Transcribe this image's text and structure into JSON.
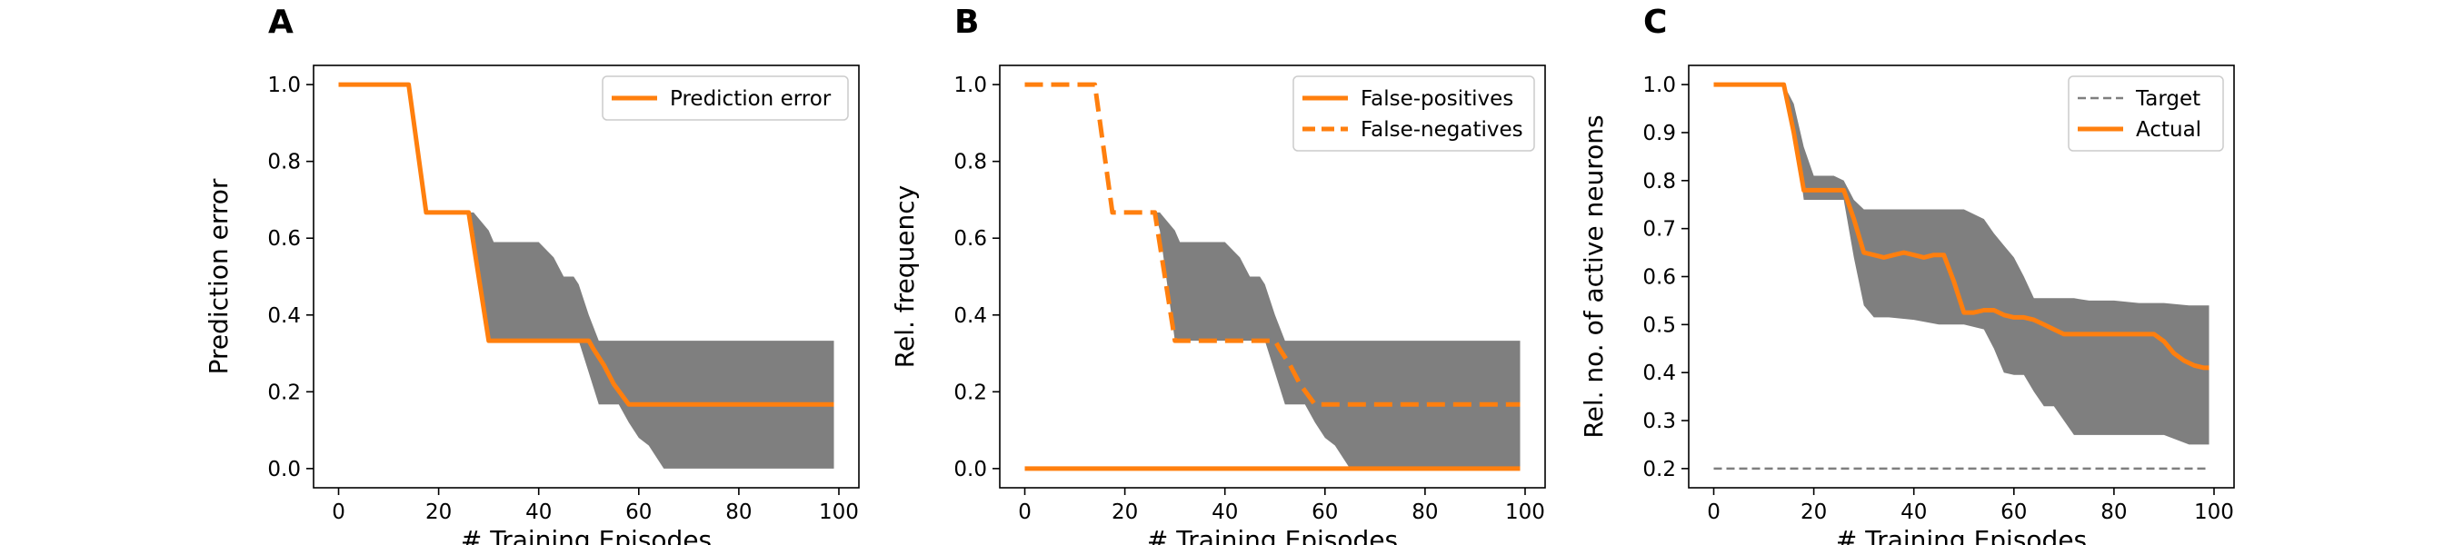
{
  "chart_data": [
    {
      "panel_label": "A",
      "type": "line",
      "title": "",
      "xlabel": "# Training Episodes",
      "ylabel": "Prediction error",
      "xlim": [
        -5,
        104
      ],
      "ylim": [
        -0.05,
        1.05
      ],
      "xticks": [
        0,
        20,
        40,
        60,
        80,
        100
      ],
      "xtick_labels": [
        "0",
        "20",
        "40",
        "60",
        "80",
        "100"
      ],
      "yticks": [
        0.0,
        0.2,
        0.4,
        0.6,
        0.8,
        1.0
      ],
      "ytick_labels": [
        "0.0",
        "0.2",
        "0.4",
        "0.6",
        "0.8",
        "1.0"
      ],
      "grid": false,
      "legend_position": "top-right",
      "band": {
        "color": "#7f7f7f",
        "x": [
          0,
          14,
          18,
          26,
          27,
          30,
          31,
          40,
          43,
          45,
          47,
          48,
          50,
          52,
          56,
          58,
          60,
          62,
          65,
          99
        ],
        "lower": [
          1.0,
          1.0,
          0.667,
          0.667,
          0.62,
          0.333,
          0.333,
          0.333,
          0.333,
          0.333,
          0.333,
          0.333,
          0.25,
          0.167,
          0.167,
          0.12,
          0.08,
          0.06,
          0.0,
          0.0
        ],
        "upper": [
          1.0,
          1.0,
          0.667,
          0.667,
          0.667,
          0.62,
          0.59,
          0.59,
          0.55,
          0.5,
          0.5,
          0.48,
          0.4,
          0.333,
          0.333,
          0.333,
          0.333,
          0.333,
          0.333,
          0.333
        ]
      },
      "series": [
        {
          "name": "Prediction error",
          "color": "#ff7f0e",
          "dash": "solid",
          "x": [
            0,
            14,
            17.5,
            26,
            30,
            50,
            51,
            53,
            55,
            58,
            99
          ],
          "y": [
            1.0,
            1.0,
            0.667,
            0.667,
            0.333,
            0.333,
            0.31,
            0.27,
            0.22,
            0.167,
            0.167
          ]
        }
      ]
    },
    {
      "panel_label": "B",
      "type": "line",
      "title": "",
      "xlabel": "# Training Episodes",
      "ylabel": "Rel. frequency",
      "xlim": [
        -5,
        104
      ],
      "ylim": [
        -0.05,
        1.05
      ],
      "xticks": [
        0,
        20,
        40,
        60,
        80,
        100
      ],
      "xtick_labels": [
        "0",
        "20",
        "40",
        "60",
        "80",
        "100"
      ],
      "yticks": [
        0.0,
        0.2,
        0.4,
        0.6,
        0.8,
        1.0
      ],
      "ytick_labels": [
        "0.0",
        "0.2",
        "0.4",
        "0.6",
        "0.8",
        "1.0"
      ],
      "grid": false,
      "legend_position": "top-right",
      "band": {
        "color": "#7f7f7f",
        "x": [
          26,
          27,
          30,
          31,
          40,
          43,
          45,
          47,
          48,
          50,
          52,
          56,
          58,
          60,
          62,
          65,
          99
        ],
        "lower": [
          0.667,
          0.62,
          0.333,
          0.333,
          0.333,
          0.333,
          0.333,
          0.333,
          0.333,
          0.25,
          0.167,
          0.167,
          0.12,
          0.08,
          0.06,
          0.0,
          0.0
        ],
        "upper": [
          0.667,
          0.667,
          0.62,
          0.59,
          0.59,
          0.55,
          0.5,
          0.5,
          0.48,
          0.4,
          0.333,
          0.333,
          0.333,
          0.333,
          0.333,
          0.333,
          0.333
        ]
      },
      "series": [
        {
          "name": "False-positives",
          "color": "#ff7f0e",
          "dash": "solid",
          "x": [
            0,
            99
          ],
          "y": [
            0.0,
            0.0
          ]
        },
        {
          "name": "False-negatives",
          "color": "#ff7f0e",
          "dash": "dashed",
          "x": [
            0,
            14,
            17.5,
            26,
            30,
            50,
            51,
            53,
            55,
            58,
            99
          ],
          "y": [
            1.0,
            1.0,
            0.667,
            0.667,
            0.333,
            0.333,
            0.31,
            0.27,
            0.22,
            0.167,
            0.167
          ]
        }
      ]
    },
    {
      "panel_label": "C",
      "type": "line",
      "title": "",
      "xlabel": "# Training Episodes",
      "ylabel": "Rel. no. of active neurons",
      "xlim": [
        -5,
        104
      ],
      "ylim": [
        0.16,
        1.04
      ],
      "xticks": [
        0,
        20,
        40,
        60,
        80,
        100
      ],
      "xtick_labels": [
        "0",
        "20",
        "40",
        "60",
        "80",
        "100"
      ],
      "yticks": [
        0.2,
        0.3,
        0.4,
        0.5,
        0.6,
        0.7,
        0.8,
        0.9,
        1.0
      ],
      "ytick_labels": [
        "0.2",
        "0.3",
        "0.4",
        "0.5",
        "0.6",
        "0.7",
        "0.8",
        "0.9",
        "1.0"
      ],
      "grid": false,
      "legend_position": "top-right",
      "band": {
        "color": "#7f7f7f",
        "x": [
          0,
          14,
          16,
          18,
          20,
          22,
          24,
          26,
          28,
          30,
          32,
          35,
          40,
          45,
          48,
          50,
          54,
          56,
          58,
          60,
          62,
          64,
          66,
          68,
          70,
          72,
          75,
          80,
          85,
          90,
          95,
          99
        ],
        "lower": [
          1.0,
          1.0,
          0.92,
          0.76,
          0.76,
          0.76,
          0.76,
          0.76,
          0.64,
          0.54,
          0.515,
          0.515,
          0.51,
          0.5,
          0.5,
          0.5,
          0.49,
          0.45,
          0.4,
          0.395,
          0.395,
          0.36,
          0.33,
          0.33,
          0.3,
          0.27,
          0.27,
          0.27,
          0.27,
          0.27,
          0.25,
          0.25
        ],
        "upper": [
          1.0,
          1.0,
          0.96,
          0.87,
          0.81,
          0.81,
          0.81,
          0.8,
          0.76,
          0.74,
          0.74,
          0.74,
          0.74,
          0.74,
          0.74,
          0.74,
          0.72,
          0.69,
          0.665,
          0.64,
          0.6,
          0.555,
          0.555,
          0.555,
          0.555,
          0.555,
          0.55,
          0.55,
          0.545,
          0.545,
          0.54,
          0.54
        ]
      },
      "series": [
        {
          "name": "Target",
          "color": "#7f7f7f",
          "dash": "dashed",
          "x": [
            0,
            99
          ],
          "y": [
            0.2,
            0.2
          ]
        },
        {
          "name": "Actual",
          "color": "#ff7f0e",
          "dash": "solid",
          "x": [
            0,
            14,
            16,
            18,
            20,
            26,
            28,
            30,
            32,
            34,
            36,
            38,
            40,
            42,
            44,
            46,
            48,
            50,
            52,
            54,
            56,
            58,
            60,
            62,
            64,
            66,
            68,
            70,
            75,
            80,
            85,
            88,
            90,
            92,
            94,
            96,
            98,
            99
          ],
          "y": [
            1.0,
            1.0,
            0.9,
            0.78,
            0.78,
            0.78,
            0.72,
            0.65,
            0.645,
            0.64,
            0.645,
            0.65,
            0.645,
            0.64,
            0.645,
            0.645,
            0.59,
            0.525,
            0.525,
            0.53,
            0.53,
            0.52,
            0.515,
            0.515,
            0.51,
            0.5,
            0.49,
            0.48,
            0.48,
            0.48,
            0.48,
            0.48,
            0.465,
            0.44,
            0.425,
            0.415,
            0.41,
            0.41
          ]
        }
      ]
    }
  ]
}
